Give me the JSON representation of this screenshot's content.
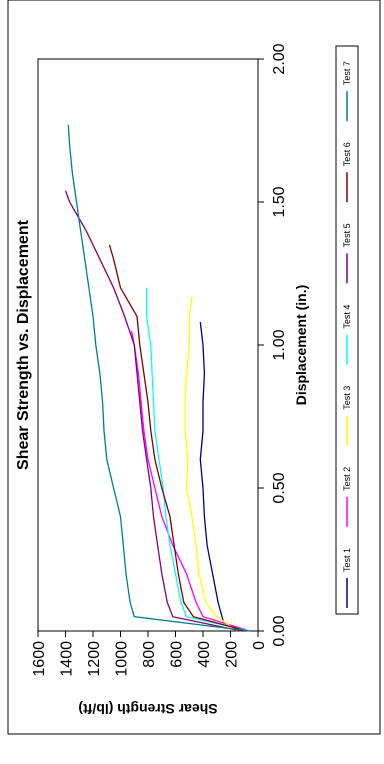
{
  "chart_data": {
    "type": "line",
    "title": "Shear Strength vs. Displacement",
    "xlabel": "Displacement (in.)",
    "ylabel": "Shear Strength (lb/ft)",
    "xlim": [
      0,
      2.0
    ],
    "ylim": [
      0,
      1600
    ],
    "x_ticks": [
      "0.00",
      "0.50",
      "1.00",
      "1.50",
      "2.00"
    ],
    "y_ticks": [
      "0",
      "200",
      "400",
      "600",
      "800",
      "1000",
      "1200",
      "1400",
      "1600"
    ],
    "orientation": "rotated-90-clockwise",
    "legend_position": "bottom-right",
    "series": [
      {
        "name": "Test 1",
        "color": "#000080",
        "x": [
          0,
          0.03,
          0.1,
          0.2,
          0.3,
          0.4,
          0.5,
          0.6,
          0.7,
          0.8,
          0.9,
          1.0,
          1.08
        ],
        "y": [
          120,
          250,
          290,
          330,
          370,
          390,
          400,
          420,
          400,
          400,
          390,
          400,
          420
        ]
      },
      {
        "name": "Test 2",
        "color": "#ff00ff",
        "x": [
          0,
          0.05,
          0.1,
          0.2,
          0.3,
          0.4,
          0.5,
          0.6,
          0.7,
          0.8,
          0.9,
          1.0,
          1.05
        ],
        "y": [
          60,
          400,
          450,
          520,
          620,
          700,
          750,
          800,
          830,
          850,
          870,
          900,
          920
        ]
      },
      {
        "name": "Test 3",
        "color": "#ffff00",
        "x": [
          0,
          0.05,
          0.1,
          0.2,
          0.3,
          0.4,
          0.5,
          0.6,
          0.7,
          0.8,
          0.9,
          1.0,
          1.1,
          1.17
        ],
        "y": [
          150,
          300,
          380,
          430,
          450,
          480,
          520,
          510,
          530,
          530,
          520,
          500,
          500,
          480
        ]
      },
      {
        "name": "Test 4",
        "color": "#00ffff",
        "x": [
          0,
          0.05,
          0.1,
          0.2,
          0.3,
          0.4,
          0.5,
          0.6,
          0.7,
          0.8,
          0.9,
          1.0,
          1.1,
          1.2
        ],
        "y": [
          60,
          520,
          560,
          600,
          640,
          670,
          690,
          720,
          750,
          760,
          770,
          780,
          810,
          810
        ]
      },
      {
        "name": "Test 5",
        "color": "#800080",
        "x": [
          0,
          0.05,
          0.1,
          0.2,
          0.3,
          0.4,
          0.5,
          0.6,
          0.7,
          0.8,
          0.9,
          1.0,
          1.1,
          1.2,
          1.3,
          1.4,
          1.5,
          1.54
        ],
        "y": [
          120,
          620,
          660,
          700,
          730,
          760,
          780,
          810,
          840,
          860,
          880,
          900,
          970,
          1050,
          1150,
          1250,
          1370,
          1400
        ]
      },
      {
        "name": "Test 6",
        "color": "#800000",
        "x": [
          0,
          0.05,
          0.1,
          0.2,
          0.3,
          0.4,
          0.5,
          0.6,
          0.7,
          0.8,
          0.9,
          1.0,
          1.1,
          1.2,
          1.3,
          1.35
        ],
        "y": [
          80,
          470,
          540,
          580,
          610,
          640,
          700,
          750,
          780,
          800,
          830,
          860,
          880,
          1000,
          1050,
          1080
        ]
      },
      {
        "name": "Test 7",
        "color": "#008080",
        "x": [
          0,
          0.05,
          0.1,
          0.2,
          0.3,
          0.4,
          0.5,
          0.6,
          0.7,
          0.8,
          0.9,
          1.0,
          1.1,
          1.2,
          1.3,
          1.4,
          1.5,
          1.6,
          1.7,
          1.77
        ],
        "y": [
          60,
          900,
          930,
          960,
          980,
          1000,
          1050,
          1100,
          1120,
          1130,
          1150,
          1180,
          1200,
          1230,
          1260,
          1290,
          1320,
          1350,
          1370,
          1380
        ]
      }
    ]
  }
}
